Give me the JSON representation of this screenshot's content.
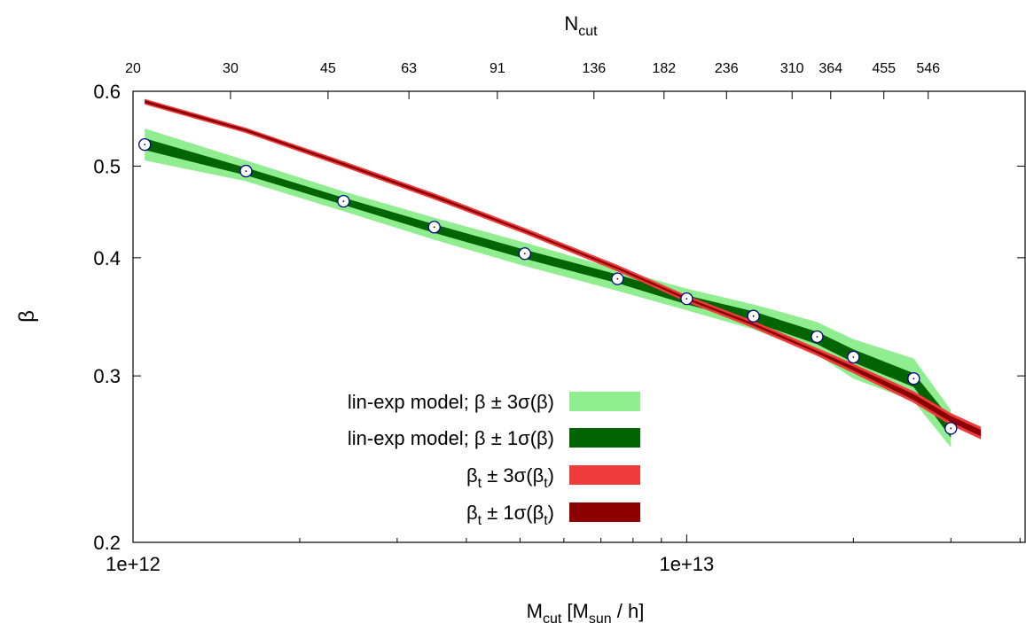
{
  "chart_data": {
    "type": "line",
    "title": "",
    "xlabel": {
      "main": "M",
      "sub": "cut",
      "rest": "  [M",
      "sub2": "sun",
      "rest2": " / h]"
    },
    "ylabel": "β",
    "x2label": {
      "main": "N",
      "sub": "cut"
    },
    "x_scale": "log",
    "y_scale": "log",
    "xlim": [
      1000000000000.0,
      41000000000000.0
    ],
    "ylim": [
      0.2,
      0.6
    ],
    "x_ticks": [
      {
        "value": 1000000000000.0,
        "label": "1e+12"
      },
      {
        "value": 10000000000000.0,
        "label": "1e+13"
      }
    ],
    "x_minor_ticks": [
      2000000000000.0,
      3000000000000.0,
      4000000000000.0,
      5000000000000.0,
      6000000000000.0,
      7000000000000.0,
      8000000000000.0,
      9000000000000.0,
      20000000000000.0,
      30000000000000.0,
      40000000000000.0
    ],
    "y_ticks": [
      {
        "value": 0.2,
        "label": "0.2"
      },
      {
        "value": 0.3,
        "label": "0.3"
      },
      {
        "value": 0.4,
        "label": "0.4"
      },
      {
        "value": 0.5,
        "label": "0.5"
      },
      {
        "value": 0.6,
        "label": "0.6"
      }
    ],
    "top_ticks": [
      {
        "x": 1000000000000.0,
        "label": "20"
      },
      {
        "x": 1500000000000.0,
        "label": "30"
      },
      {
        "x": 2250000000000.0,
        "label": "45"
      },
      {
        "x": 3150000000000.0,
        "label": "63"
      },
      {
        "x": 4550000000000.0,
        "label": "91"
      },
      {
        "x": 6800000000000.0,
        "label": "136"
      },
      {
        "x": 9100000000000.0,
        "label": "182"
      },
      {
        "x": 11800000000000.0,
        "label": "236"
      },
      {
        "x": 15500000000000.0,
        "label": "310"
      },
      {
        "x": 18200000000000.0,
        "label": "364"
      },
      {
        "x": 22700000000000.0,
        "label": "455"
      },
      {
        "x": 27300000000000.0,
        "label": "546"
      }
    ],
    "series": [
      {
        "name": "lin-exp model;  β ± 3σ(β)",
        "kind": "band",
        "color": "#90ee90",
        "x": [
          1050000000000.0,
          1600000000000.0,
          2400000000000.0,
          3500000000000.0,
          5100000000000.0,
          7500000000000.0,
          10000000000000.0,
          13200000000000.0,
          17200000000000.0,
          20000000000000.0,
          25700000000000.0,
          30000000000000.0
        ],
        "lower": [
          0.507,
          0.482,
          0.448,
          0.418,
          0.392,
          0.369,
          0.352,
          0.336,
          0.316,
          0.298,
          0.282,
          0.252
        ],
        "upper": [
          0.548,
          0.507,
          0.47,
          0.441,
          0.415,
          0.389,
          0.371,
          0.357,
          0.342,
          0.328,
          0.313,
          0.276
        ]
      },
      {
        "name": "lin-exp model;  β ± 1σ(β)",
        "kind": "band",
        "color": "#006400",
        "x": [
          1050000000000.0,
          1600000000000.0,
          2400000000000.0,
          3500000000000.0,
          5100000000000.0,
          7500000000000.0,
          10000000000000.0,
          13200000000000.0,
          17200000000000.0,
          20000000000000.0,
          25700000000000.0,
          30000000000000.0
        ],
        "lower": [
          0.52,
          0.489,
          0.455,
          0.425,
          0.399,
          0.376,
          0.357,
          0.342,
          0.324,
          0.31,
          0.292,
          0.258
        ],
        "upper": [
          0.535,
          0.498,
          0.463,
          0.434,
          0.408,
          0.384,
          0.365,
          0.351,
          0.334,
          0.32,
          0.302,
          0.27
        ]
      },
      {
        "name": "β",
        "kind": "points",
        "color": "#00008b",
        "x": [
          1050000000000.0,
          1600000000000.0,
          2400000000000.0,
          3500000000000.0,
          5100000000000.0,
          7500000000000.0,
          10000000000000.0,
          13200000000000.0,
          17200000000000.0,
          20000000000000.0,
          25700000000000.0,
          30000000000000.0
        ],
        "y": [
          0.527,
          0.494,
          0.459,
          0.431,
          0.404,
          0.38,
          0.362,
          0.347,
          0.33,
          0.314,
          0.298,
          0.264
        ]
      },
      {
        "name": "β_t ± 3σ(β_t)",
        "kind": "band",
        "color": "#ee3b3b",
        "x": [
          1050000000000.0,
          1600000000000.0,
          2400000000000.0,
          3500000000000.0,
          5100000000000.0,
          7500000000000.0,
          10000000000000.0,
          13200000000000.0,
          17200000000000.0,
          20000000000000.0,
          25700000000000.0,
          30000000000000.0,
          34000000000000.0
        ],
        "lower": [
          0.581,
          0.542,
          0.499,
          0.461,
          0.424,
          0.387,
          0.359,
          0.337,
          0.315,
          0.302,
          0.281,
          0.266,
          0.257
        ],
        "upper": [
          0.589,
          0.549,
          0.506,
          0.468,
          0.43,
          0.393,
          0.365,
          0.343,
          0.321,
          0.309,
          0.289,
          0.274,
          0.265
        ]
      },
      {
        "name": "β_t ± 1σ(β_t)",
        "kind": "band",
        "color": "#8b0000",
        "x": [
          1050000000000.0,
          1600000000000.0,
          2400000000000.0,
          3500000000000.0,
          5100000000000.0,
          7500000000000.0,
          10000000000000.0,
          13200000000000.0,
          17200000000000.0,
          20000000000000.0,
          25700000000000.0,
          30000000000000.0,
          34000000000000.0
        ],
        "lower": [
          0.583,
          0.544,
          0.501,
          0.463,
          0.426,
          0.389,
          0.361,
          0.339,
          0.317,
          0.304,
          0.283,
          0.268,
          0.259
        ],
        "upper": [
          0.587,
          0.547,
          0.504,
          0.466,
          0.428,
          0.391,
          0.363,
          0.341,
          0.319,
          0.307,
          0.287,
          0.272,
          0.263
        ]
      }
    ],
    "legend": {
      "placement": "bottom-left",
      "entries": [
        {
          "label": "lin-exp model;  β ± 3σ(β)",
          "color": "#90ee90"
        },
        {
          "label": "lin-exp model;  β ± 1σ(β)",
          "color": "#006400"
        },
        {
          "label_main": "β",
          "label_sub": "t",
          "label_mid": " ± 3σ(β",
          "label_sub2": "t",
          "label_end": ")",
          "color": "#ee3b3b"
        },
        {
          "label_main": "β",
          "label_sub": "t",
          "label_mid": " ± 1σ(β",
          "label_sub2": "t",
          "label_end": ")",
          "color": "#8b0000"
        }
      ]
    }
  }
}
